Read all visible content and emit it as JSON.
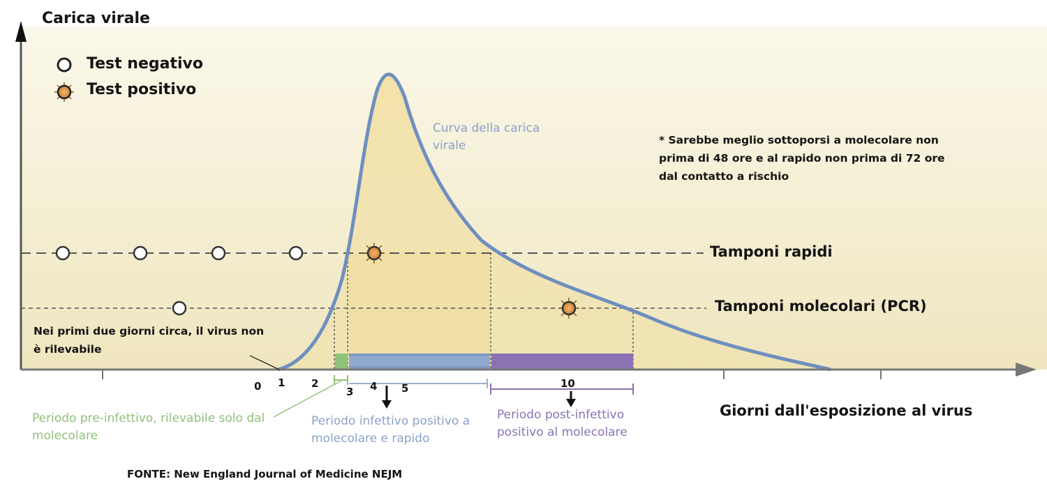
{
  "y_axis_title": "Carica virale",
  "x_axis_title": "Giorni dall'esposizione al virus",
  "legend": {
    "negative": "Test negativo",
    "positive": "Test positivo"
  },
  "curve_label": "Curva della carica virale",
  "note": "* Sarebbe meglio sottoporsi a molecolare non prima di 48 ore e al rapido non prima di 72 ore dal contatto a rischio",
  "rows": {
    "rapid": "Tamponi rapidi",
    "pcr": "Tamponi molecolari (PCR)"
  },
  "undetectable_note": "Nei primi due giorni circa, il virus non è rilevabile",
  "x_ticks": [
    "0",
    "1",
    "2",
    "3",
    "4",
    "5",
    "10"
  ],
  "periods": {
    "pre": "Periodo pre-infettivo, rilevabile solo dal molecolare",
    "infective": "Periodo infettivo positivo a molecolare e rapido",
    "post": "Periodo post-infettivo positivo al molecolare"
  },
  "source": "FONTE: New England Journal of Medicine NEJM",
  "colors": {
    "curve": "#6e8fbf",
    "pre_period": "#8fc17a",
    "infective_period": "#8aa2c9",
    "post_period": "#8b73b3",
    "positive_marker": "#d98f3a",
    "background": "#f3eccb"
  }
}
